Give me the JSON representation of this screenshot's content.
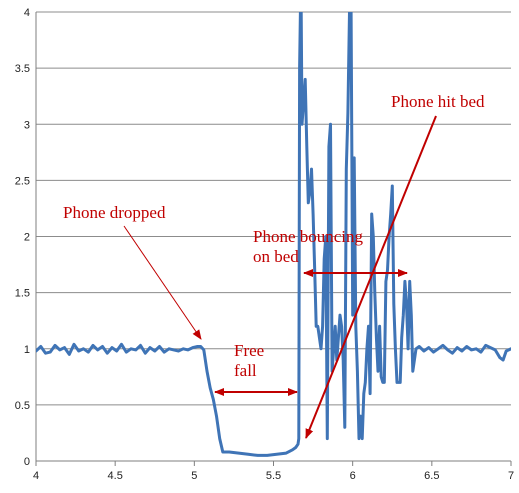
{
  "chart_data": {
    "type": "line",
    "title": "",
    "xlabel": "",
    "ylabel": "",
    "xlim": [
      4,
      7
    ],
    "ylim": [
      0,
      4
    ],
    "grid": "horizontal",
    "legend": "none",
    "x_ticks": [
      "4",
      "4.5",
      "5",
      "5.5",
      "6",
      "6.5",
      "7"
    ],
    "y_ticks": [
      "0",
      "0.5",
      "1",
      "1.5",
      "2",
      "2.5",
      "3",
      "3.5",
      "4"
    ],
    "series": [
      {
        "color": "#3f74b6",
        "x": [
          4.0,
          4.03,
          4.06,
          4.09,
          4.12,
          4.15,
          4.18,
          4.21,
          4.24,
          4.27,
          4.3,
          4.33,
          4.36,
          4.39,
          4.42,
          4.45,
          4.48,
          4.51,
          4.54,
          4.57,
          4.6,
          4.63,
          4.66,
          4.69,
          4.72,
          4.75,
          4.78,
          4.81,
          4.84,
          4.87,
          4.9,
          4.93,
          4.96,
          4.99,
          5.02,
          5.04,
          5.06,
          5.08,
          5.1,
          5.12,
          5.14,
          5.16,
          5.18,
          5.22,
          5.28,
          5.34,
          5.4,
          5.46,
          5.52,
          5.58,
          5.62,
          5.64,
          5.655,
          5.66,
          5.665,
          5.67,
          5.675,
          5.68,
          5.69,
          5.7,
          5.71,
          5.72,
          5.73,
          5.74,
          5.75,
          5.76,
          5.77,
          5.78,
          5.79,
          5.8,
          5.81,
          5.82,
          5.83,
          5.84,
          5.85,
          5.86,
          5.87,
          5.88,
          5.89,
          5.9,
          5.91,
          5.92,
          5.93,
          5.94,
          5.95,
          5.96,
          5.97,
          5.98,
          5.99,
          6.0,
          6.01,
          6.02,
          6.03,
          6.04,
          6.05,
          6.06,
          6.07,
          6.08,
          6.09,
          6.1,
          6.11,
          6.12,
          6.13,
          6.14,
          6.15,
          6.16,
          6.17,
          6.18,
          6.19,
          6.2,
          6.21,
          6.22,
          6.23,
          6.24,
          6.25,
          6.26,
          6.27,
          6.28,
          6.29,
          6.3,
          6.31,
          6.32,
          6.33,
          6.34,
          6.35,
          6.36,
          6.37,
          6.38,
          6.39,
          6.4,
          6.42,
          6.45,
          6.48,
          6.51,
          6.54,
          6.57,
          6.6,
          6.63,
          6.66,
          6.69,
          6.72,
          6.75,
          6.78,
          6.81,
          6.84,
          6.87,
          6.9,
          6.93,
          6.95,
          6.97,
          7.0
        ],
        "y": [
          0.98,
          1.02,
          0.96,
          0.97,
          1.03,
          0.99,
          1.01,
          0.95,
          1.04,
          0.98,
          1.0,
          0.97,
          1.03,
          0.99,
          1.02,
          0.96,
          1.01,
          0.98,
          1.04,
          0.97,
          1.0,
          0.99,
          1.03,
          0.96,
          1.01,
          0.98,
          1.02,
          0.97,
          1.0,
          0.99,
          0.98,
          1.0,
          0.99,
          1.01,
          1.02,
          1.02,
          0.99,
          0.8,
          0.65,
          0.55,
          0.4,
          0.2,
          0.08,
          0.08,
          0.07,
          0.06,
          0.05,
          0.05,
          0.06,
          0.07,
          0.1,
          0.12,
          0.15,
          0.2,
          3.5,
          4.0,
          4.0,
          3.0,
          3.2,
          3.4,
          2.8,
          2.3,
          2.4,
          2.6,
          2.2,
          1.7,
          1.2,
          1.2,
          1.1,
          1.0,
          1.2,
          1.8,
          2.0,
          0.2,
          2.8,
          3.0,
          0.8,
          1.0,
          1.2,
          0.9,
          1.1,
          1.3,
          1.2,
          0.9,
          0.3,
          2.6,
          3.1,
          4.0,
          4.0,
          1.3,
          2.7,
          1.2,
          0.8,
          0.2,
          0.4,
          0.2,
          0.6,
          0.7,
          1.0,
          1.2,
          0.6,
          2.2,
          2.0,
          1.5,
          1.1,
          0.8,
          1.2,
          0.75,
          0.7,
          0.7,
          1.6,
          1.7,
          2.0,
          2.2,
          2.45,
          1.4,
          1.0,
          0.7,
          0.7,
          0.7,
          1.1,
          1.3,
          1.6,
          1.4,
          1.0,
          1.6,
          1.3,
          0.8,
          0.9,
          1.0,
          1.02,
          0.98,
          1.01,
          0.97,
          1.0,
          1.03,
          0.99,
          0.96,
          1.01,
          0.98,
          1.02,
          0.99,
          1.0,
          0.97,
          1.03,
          1.01,
          0.99,
          0.92,
          0.9,
          0.98,
          1.0
        ]
      }
    ],
    "annotations": [
      {
        "name": "phone-dropped",
        "lines": [
          "Phone dropped"
        ]
      },
      {
        "name": "free-fall",
        "lines": [
          "Free",
          "fall"
        ]
      },
      {
        "name": "phone-bouncing",
        "lines": [
          "Phone bouncing",
          "on bed"
        ]
      },
      {
        "name": "phone-hit-bed",
        "lines": [
          "Phone hit bed"
        ]
      }
    ],
    "annotation_color": "#c00000"
  }
}
